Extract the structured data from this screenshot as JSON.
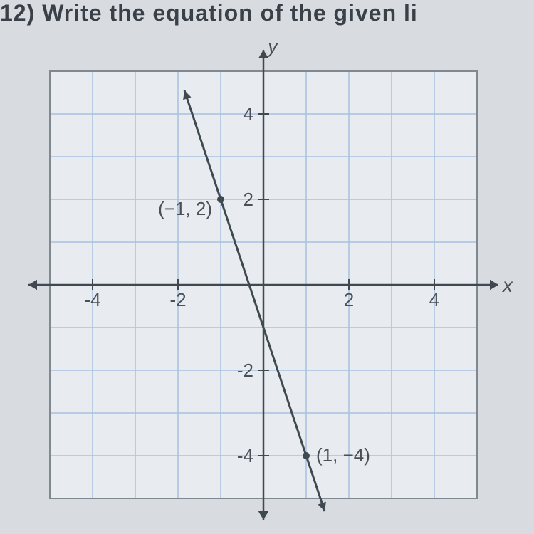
{
  "header": {
    "text": "12) Write the equation of the given li"
  },
  "chart": {
    "type": "line",
    "axis_labels": {
      "x": "x",
      "y": "y"
    },
    "xlim": [
      -5,
      5
    ],
    "ylim": [
      -5,
      5
    ],
    "x_ticks": [
      -4,
      -2,
      2,
      4
    ],
    "y_ticks": [
      -4,
      -2,
      2,
      4
    ],
    "grid_color": "#a8c0e0",
    "grid_width": 1.5,
    "border_color": "#808890",
    "border_width": 2,
    "axis_color": "#404850",
    "axis_width": 2.5,
    "background_color": "#e8ecf0",
    "line": {
      "points": [
        {
          "x": -1.9,
          "y": 4.7
        },
        {
          "x": 2.0,
          "y": -7.0
        }
      ],
      "color": "#404850",
      "width": 3
    },
    "marked_points": [
      {
        "x": -1,
        "y": 2,
        "label": "(−1, 2)",
        "label_pos": "left"
      },
      {
        "x": 1,
        "y": -4,
        "label": "(1, −4)",
        "label_pos": "right"
      }
    ],
    "point_color": "#404850",
    "point_radius": 5,
    "arrow_size": 12,
    "label_fontsize": 26,
    "tick_fontsize": 26
  }
}
